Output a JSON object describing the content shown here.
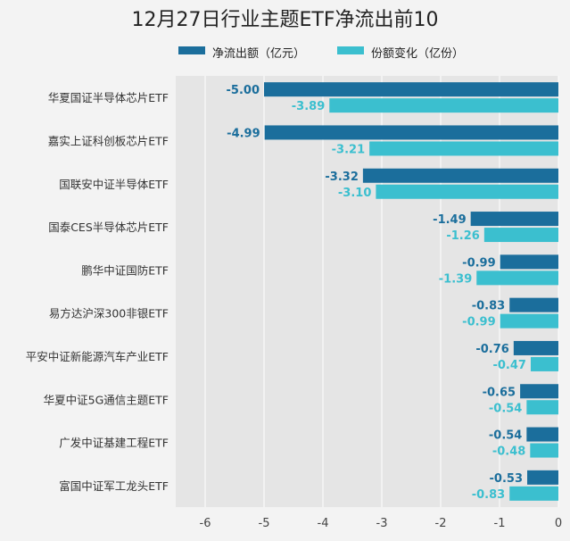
{
  "title": "12月27日行业主题ETF净流出前10",
  "colors": {
    "series1": "#1b6e9c",
    "series2": "#3bbfcf",
    "plot_bg": "#e5e5e5",
    "grid": "#ffffff"
  },
  "chart_data": {
    "type": "bar",
    "orientation": "horizontal",
    "categories": [
      "华夏国证半导体芯片ETF",
      "嘉实上证科创板芯片ETF",
      "国联安中证半导体ETF",
      "国泰CES半导体芯片ETF",
      "鹏华中证国防ETF",
      "易方达沪深300非银ETF",
      "平安中证新能源汽车产业ETF",
      "华夏中证5G通信主题ETF",
      "广发中证基建工程ETF",
      "富国中证军工龙头ETF"
    ],
    "series": [
      {
        "name": "净流出额（亿元）",
        "color": "#1b6e9c",
        "values": [
          -5.0,
          -4.99,
          -3.32,
          -1.49,
          -0.99,
          -0.83,
          -0.76,
          -0.65,
          -0.54,
          -0.53
        ],
        "labels": [
          "-5.00",
          "-4.99",
          "-3.32",
          "-1.49",
          "-0.99",
          "-0.83",
          "-0.76",
          "-0.65",
          "-0.54",
          "-0.53"
        ]
      },
      {
        "name": "份额变化（亿份）",
        "color": "#3bbfcf",
        "values": [
          -3.89,
          -3.21,
          -3.1,
          -1.26,
          -1.39,
          -0.99,
          -0.47,
          -0.54,
          -0.48,
          -0.83
        ],
        "labels": [
          "-3.89",
          "-3.21",
          "-3.10",
          "-1.26",
          "-1.39",
          "-0.99",
          "-0.47",
          "-0.54",
          "-0.48",
          "-0.83"
        ]
      }
    ],
    "xlim": [
      -6.5,
      0
    ],
    "xticks": [
      -6,
      -5,
      -4,
      -3,
      -2,
      -1,
      0
    ],
    "xtick_labels": [
      "-6",
      "-5",
      "-4",
      "-3",
      "-2",
      "-1",
      "0"
    ],
    "grid": true,
    "legend": "top"
  }
}
